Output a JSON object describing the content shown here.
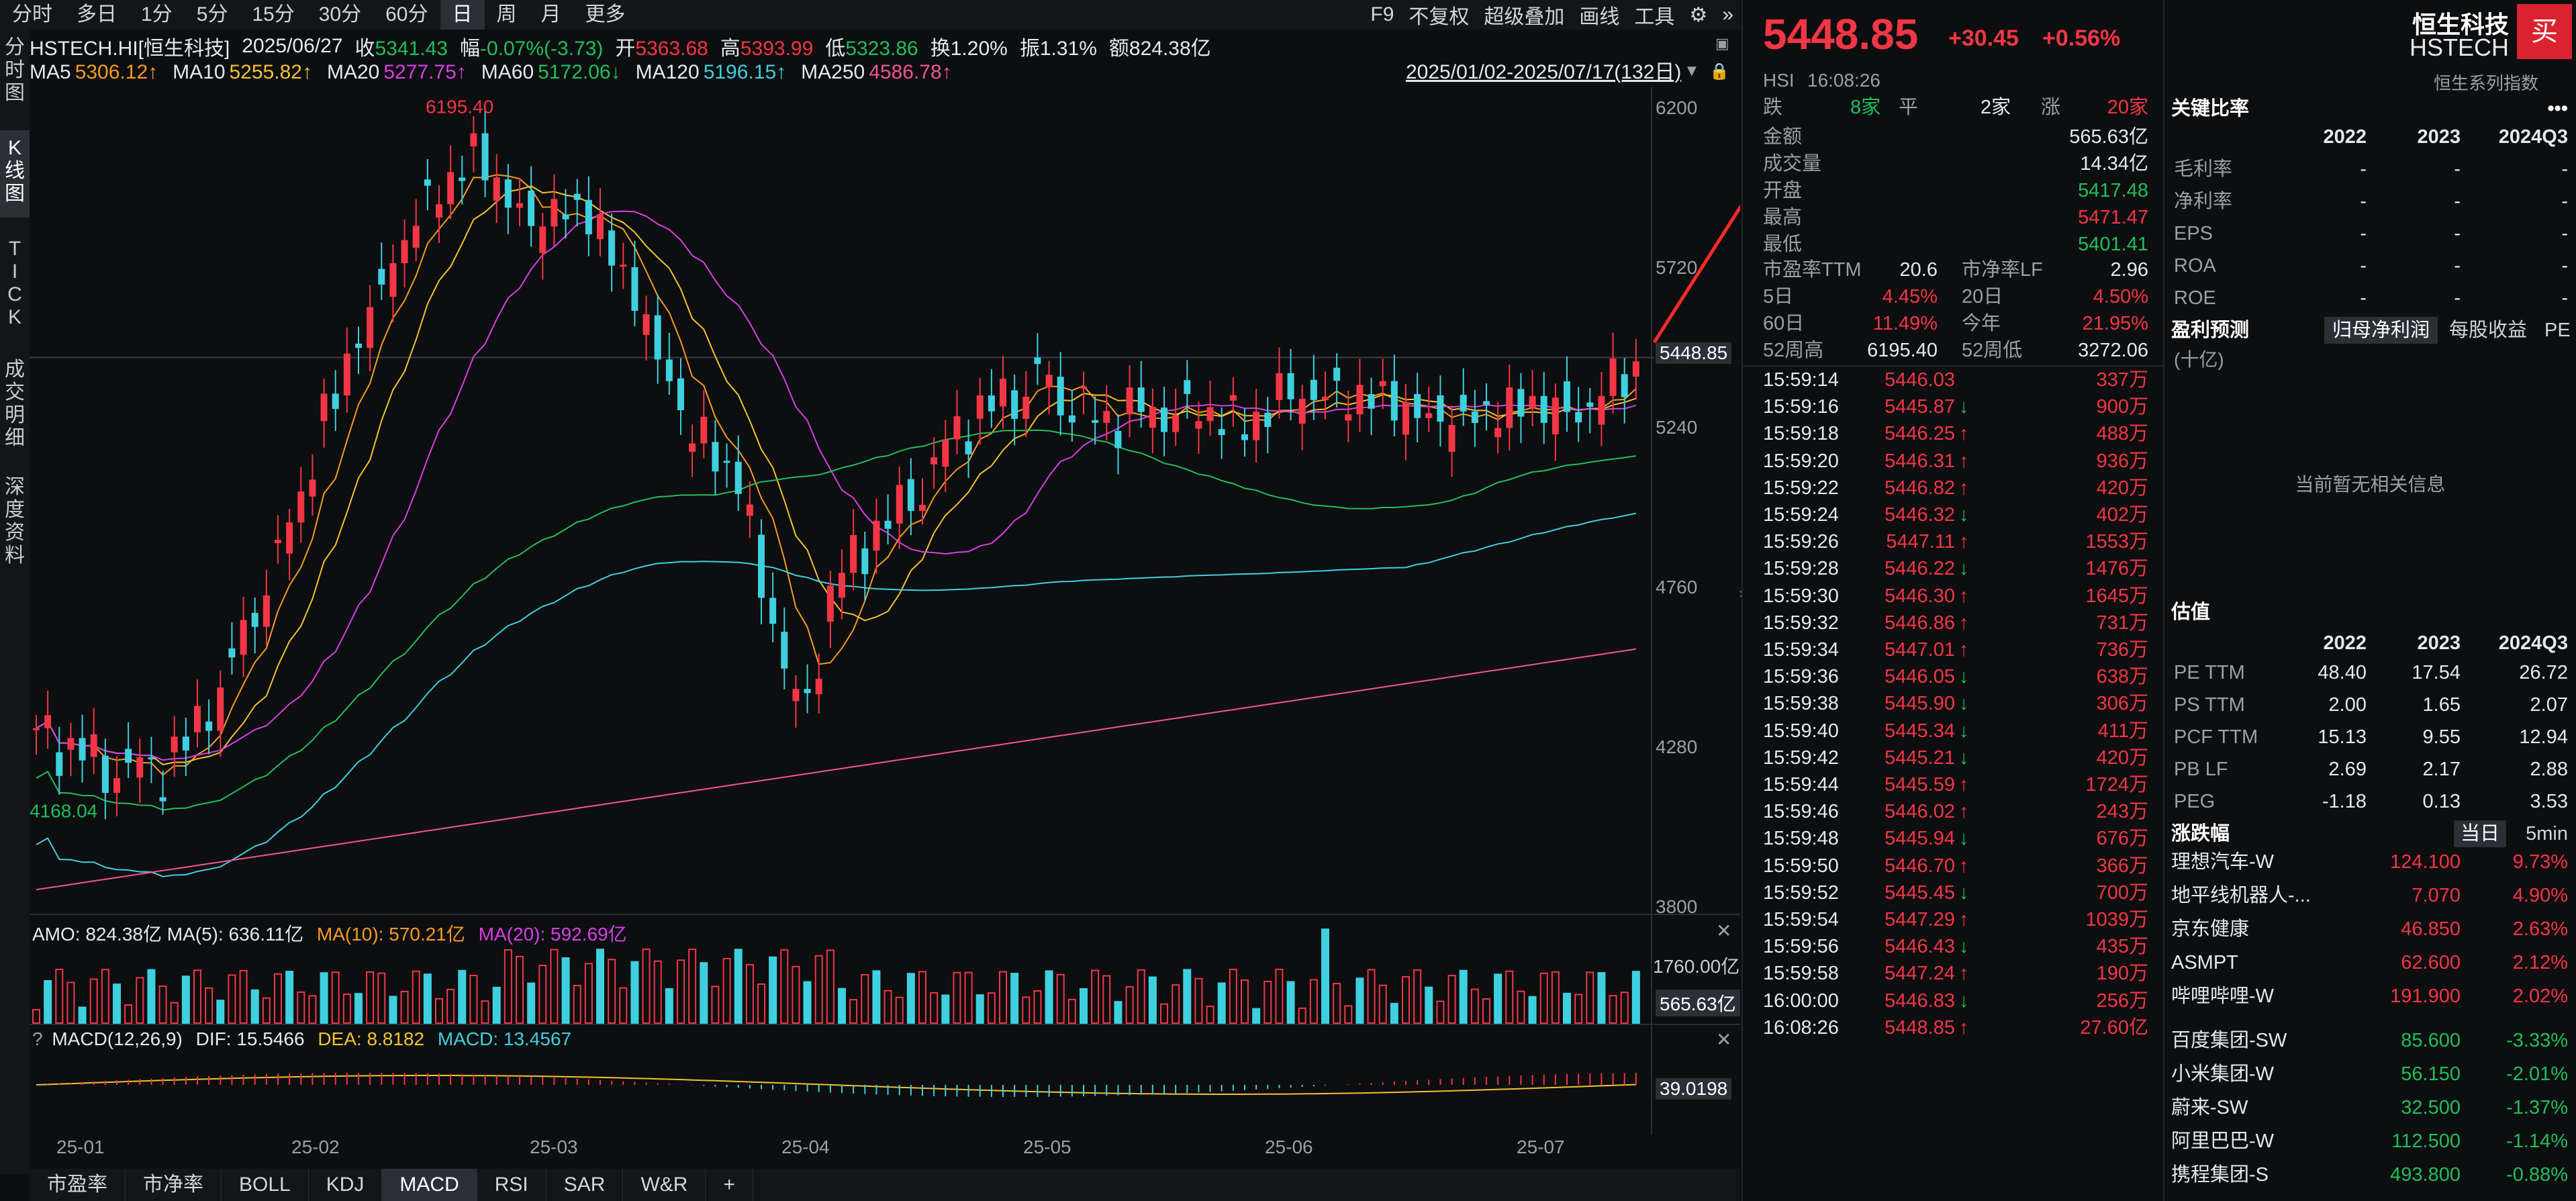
{
  "toolbar": {
    "items": [
      "分时",
      "多日",
      "1分",
      "5分",
      "15分",
      "30分",
      "60分",
      "日",
      "周",
      "月",
      "更多"
    ],
    "active_index": 7,
    "right": [
      "F9",
      "不复权",
      "超级叠加",
      "画线",
      "工具"
    ]
  },
  "left_tabs": [
    "分时图",
    "K线图",
    "TICK",
    "成交明细",
    "深度资料"
  ],
  "info": {
    "symbol": "HSTECH.HI[恒生科技]",
    "date": "2025/06/27",
    "close_label": "收",
    "close": "5341.43",
    "change_label": "幅",
    "change": "-0.07%(-3.73)",
    "open_label": "开",
    "open": "5363.68",
    "high_label": "高",
    "high": "5393.99",
    "low_label": "低",
    "low": "5323.86",
    "turnover_label": "换",
    "turnover": "1.20%",
    "amplitude_label": "振",
    "amplitude": "1.31%",
    "amount_label": "额",
    "amount": "824.38亿"
  },
  "ma": [
    {
      "label": "MA5",
      "value": "5306.12↑",
      "color": "#f59b22"
    },
    {
      "label": "MA10",
      "value": "5255.82↑",
      "color": "#f2c230"
    },
    {
      "label": "MA20",
      "value": "5277.75↑",
      "color": "#d83ee6"
    },
    {
      "label": "MA60",
      "value": "5172.06↓",
      "color": "#1fbf5b"
    },
    {
      "label": "MA120",
      "value": "5196.15↑",
      "color": "#3ed0df"
    },
    {
      "label": "MA250",
      "value": "4586.78↑",
      "color": "#f0568c"
    }
  ],
  "range_label": "2025/01/02-2025/07/17(132日)",
  "price_axis": [
    "6200",
    "5720",
    "5240",
    "4760",
    "4280",
    "3800"
  ],
  "last_price_tag": "5448.85",
  "high_marker": "6195.40",
  "low_marker": "4168.04",
  "volume": {
    "line": "AMO: 824.38亿  MA(5): 636.11亿",
    "ma10": "MA(10): 570.21亿",
    "ma20": "MA(20): 592.69亿",
    "axis_top": "1760.00亿",
    "tag": "565.63亿"
  },
  "macd": {
    "label": "MACD(12,26,9)",
    "dif": "DIF: 15.5466",
    "dea": "DEA: 8.8182",
    "macd": "MACD: 13.4567",
    "tag": "39.0198"
  },
  "x_axis": [
    "25-01",
    "25-02",
    "25-03",
    "25-04",
    "25-05",
    "25-06",
    "25-07"
  ],
  "bottom_tabs": [
    "市盈率",
    "市净率",
    "BOLL",
    "KDJ",
    "MACD",
    "RSI",
    "SAR",
    "W&R",
    "+"
  ],
  "bottom_active": 4,
  "chart_data": {
    "type": "candlestick",
    "x_range": [
      "2025/01/02",
      "2025/07/17"
    ],
    "ylim": [
      3800,
      6200
    ],
    "high": 6195.4,
    "low": 4168.04,
    "last": 5448.85
  },
  "quote": {
    "price": "5448.85",
    "change": "+30.45",
    "change_pct": "+0.56%",
    "name": "恒生科技",
    "code": "HSTECH",
    "sub_left": "HSI",
    "time": "16:08:26",
    "series": "恒生系列指数",
    "buy": "买",
    "breadth": {
      "down_label": "跌",
      "down": "8家",
      "flat_label": "平",
      "flat": "2家",
      "up_label": "涨",
      "up": "20家"
    },
    "stats": [
      {
        "label": "金额",
        "value": "565.63亿",
        "color": "white"
      },
      {
        "label": "成交量",
        "value": "14.34亿",
        "color": "white"
      },
      {
        "label": "开盘",
        "value": "5417.48",
        "color": "green"
      },
      {
        "label": "最高",
        "value": "5471.47",
        "color": "red"
      },
      {
        "label": "最低",
        "value": "5401.41",
        "color": "green"
      }
    ],
    "stats2": [
      {
        "l1": "市盈率TTM",
        "v1": "20.6",
        "c1": "white",
        "l2": "市净率LF",
        "v2": "2.96",
        "c2": "white"
      },
      {
        "l1": "5日",
        "v1": "4.45%",
        "c1": "red",
        "l2": "20日",
        "v2": "4.50%",
        "c2": "red"
      },
      {
        "l1": "60日",
        "v1": "11.49%",
        "c1": "red",
        "l2": "今年",
        "v2": "21.95%",
        "c2": "red"
      },
      {
        "l1": "52周高",
        "v1": "6195.40",
        "c1": "white",
        "l2": "52周低",
        "v2": "3272.06",
        "c2": "white"
      }
    ],
    "ticks": [
      {
        "t": "15:59:14",
        "p": "5446.03",
        "a": "",
        "v": "337万"
      },
      {
        "t": "15:59:16",
        "p": "5445.87",
        "a": "↓",
        "v": "900万"
      },
      {
        "t": "15:59:18",
        "p": "5446.25",
        "a": "↑",
        "v": "488万"
      },
      {
        "t": "15:59:20",
        "p": "5446.31",
        "a": "↑",
        "v": "936万"
      },
      {
        "t": "15:59:22",
        "p": "5446.82",
        "a": "↑",
        "v": "420万"
      },
      {
        "t": "15:59:24",
        "p": "5446.32",
        "a": "↓",
        "v": "402万"
      },
      {
        "t": "15:59:26",
        "p": "5447.11",
        "a": "↑",
        "v": "1553万"
      },
      {
        "t": "15:59:28",
        "p": "5446.22",
        "a": "↓",
        "v": "1476万"
      },
      {
        "t": "15:59:30",
        "p": "5446.30",
        "a": "↑",
        "v": "1645万"
      },
      {
        "t": "15:59:32",
        "p": "5446.86",
        "a": "↑",
        "v": "731万"
      },
      {
        "t": "15:59:34",
        "p": "5447.01",
        "a": "↑",
        "v": "736万"
      },
      {
        "t": "15:59:36",
        "p": "5446.05",
        "a": "↓",
        "v": "638万"
      },
      {
        "t": "15:59:38",
        "p": "5445.90",
        "a": "↓",
        "v": "306万"
      },
      {
        "t": "15:59:40",
        "p": "5445.34",
        "a": "↓",
        "v": "411万"
      },
      {
        "t": "15:59:42",
        "p": "5445.21",
        "a": "↓",
        "v": "420万"
      },
      {
        "t": "15:59:44",
        "p": "5445.59",
        "a": "↑",
        "v": "1724万"
      },
      {
        "t": "15:59:46",
        "p": "5446.02",
        "a": "↑",
        "v": "243万"
      },
      {
        "t": "15:59:48",
        "p": "5445.94",
        "a": "↓",
        "v": "676万"
      },
      {
        "t": "15:59:50",
        "p": "5446.70",
        "a": "↑",
        "v": "366万"
      },
      {
        "t": "15:59:52",
        "p": "5445.45",
        "a": "↓",
        "v": "700万"
      },
      {
        "t": "15:59:54",
        "p": "5447.29",
        "a": "↑",
        "v": "1039万"
      },
      {
        "t": "15:59:56",
        "p": "5446.43",
        "a": "↓",
        "v": "435万"
      },
      {
        "t": "15:59:58",
        "p": "5447.24",
        "a": "↑",
        "v": "190万"
      },
      {
        "t": "16:00:00",
        "p": "5446.83",
        "a": "↓",
        "v": "256万"
      },
      {
        "t": "16:08:26",
        "p": "5448.85",
        "a": "↑",
        "v": "27.60亿"
      }
    ]
  },
  "fin": {
    "key_ratios_title": "关键比率",
    "years": [
      "2022",
      "2023",
      "2024Q3"
    ],
    "key_ratios": [
      {
        "label": "毛利率",
        "v": [
          "-",
          "-",
          "-"
        ]
      },
      {
        "label": "净利率",
        "v": [
          "-",
          "-",
          "-"
        ]
      },
      {
        "label": "EPS",
        "v": [
          "-",
          "-",
          "-"
        ]
      },
      {
        "label": "ROA",
        "v": [
          "-",
          "-",
          "-"
        ]
      },
      {
        "label": "ROE",
        "v": [
          "-",
          "-",
          "-"
        ]
      }
    ],
    "profit_title": "盈利预测",
    "profit_tabs": [
      "归母净利润",
      "每股收益",
      "PE"
    ],
    "profit_unit": "(十亿)",
    "profit_empty": "当前暂无相关信息",
    "valuation_title": "估值",
    "valuation": [
      {
        "label": "PE TTM",
        "v": [
          "48.40",
          "17.54",
          "26.72"
        ]
      },
      {
        "label": "PS TTM",
        "v": [
          "2.00",
          "1.65",
          "2.07"
        ]
      },
      {
        "label": "PCF TTM",
        "v": [
          "15.13",
          "9.55",
          "12.94"
        ]
      },
      {
        "label": "PB LF",
        "v": [
          "2.69",
          "2.17",
          "2.88"
        ]
      },
      {
        "label": "PEG",
        "v": [
          "-1.18",
          "0.13",
          "3.53"
        ]
      }
    ],
    "movers_title": "涨跌幅",
    "movers_tabs": [
      "当日",
      "5min"
    ],
    "gainers": [
      {
        "name": "理想汽车-W",
        "price": "124.100",
        "pct": "9.73%"
      },
      {
        "name": "地平线机器人-...",
        "price": "7.070",
        "pct": "4.90%"
      },
      {
        "name": "京东健康",
        "price": "46.850",
        "pct": "2.63%"
      },
      {
        "name": "ASMPT",
        "price": "62.600",
        "pct": "2.12%"
      },
      {
        "name": "哔哩哔哩-W",
        "price": "191.900",
        "pct": "2.02%"
      }
    ],
    "losers": [
      {
        "name": "百度集团-SW",
        "price": "85.600",
        "pct": "-3.33%"
      },
      {
        "name": "小米集团-W",
        "price": "56.150",
        "pct": "-2.01%"
      },
      {
        "name": "蔚来-SW",
        "price": "32.500",
        "pct": "-1.37%"
      },
      {
        "name": "阿里巴巴-W",
        "price": "112.500",
        "pct": "-1.14%"
      },
      {
        "name": "携程集团-S",
        "price": "493.800",
        "pct": "-0.88%"
      }
    ]
  }
}
